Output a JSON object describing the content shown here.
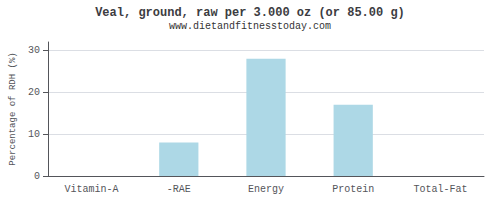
{
  "chart_data": {
    "type": "bar",
    "title": "Veal, ground, raw per 3.000 oz (or 85.00 g)",
    "subtitle": "www.dietandfitnesstoday.com",
    "categories": [
      "Vitamin-A",
      "-RAE",
      "Energy",
      "Protein",
      "Total-Fat"
    ],
    "values": [
      0,
      8,
      28,
      17,
      0
    ],
    "color": "#add8e6",
    "ylabel": "Percentage of RDH (%)",
    "ylim": [
      0,
      32
    ],
    "yticks": [
      0,
      10,
      20,
      30
    ],
    "grid": true
  }
}
